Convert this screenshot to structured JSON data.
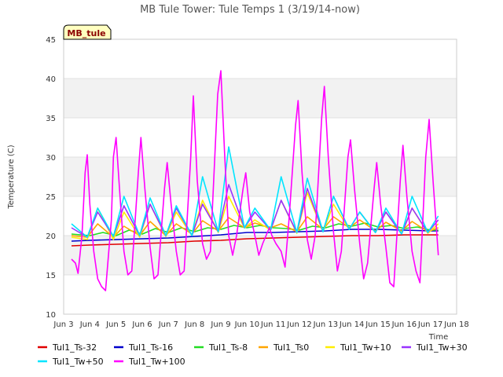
{
  "chart_data": {
    "type": "line",
    "title": "MB Tule Tower: Tule Temps 1 (3/19/14-now)",
    "xlabel": "Time",
    "ylabel": "Temperature (C)",
    "ylim": [
      10,
      45
    ],
    "xlim": [
      3,
      18
    ],
    "yticks": [
      10,
      15,
      20,
      25,
      30,
      35,
      40,
      45
    ],
    "xticks": [
      {
        "v": 3,
        "label": "Jun 3"
      },
      {
        "v": 4,
        "label": "Jun 4"
      },
      {
        "v": 5,
        "label": "Jun 5"
      },
      {
        "v": 6,
        "label": "Jun 6"
      },
      {
        "v": 7,
        "label": "Jun 7"
      },
      {
        "v": 8,
        "label": "Jun 8"
      },
      {
        "v": 9,
        "label": "Jun 9"
      },
      {
        "v": 10,
        "label": "Jun 10"
      },
      {
        "v": 11,
        "label": "Jun 11"
      },
      {
        "v": 12,
        "label": "Jun 12"
      },
      {
        "v": 13,
        "label": "Jun 13"
      },
      {
        "v": 14,
        "label": "Jun 14"
      },
      {
        "v": 15,
        "label": "Jun 15"
      },
      {
        "v": 16,
        "label": "Jun 16"
      },
      {
        "v": 17,
        "label": "Jun 17"
      },
      {
        "v": 18,
        "label": "Jun 18"
      }
    ],
    "badge": "MB_tule",
    "bands": true,
    "series": [
      {
        "name": "Tul1_Ts-32",
        "color": "#e00000",
        "x": [
          3.3,
          4,
          5,
          6,
          7,
          8,
          9,
          10,
          11,
          12,
          13,
          14,
          15,
          16,
          17,
          17.3
        ],
        "y": [
          18.7,
          18.8,
          18.9,
          19.0,
          19.1,
          19.3,
          19.4,
          19.6,
          19.7,
          19.8,
          19.9,
          20.0,
          20.0,
          20.1,
          20.1,
          20.1
        ]
      },
      {
        "name": "Tul1_Ts-16",
        "color": "#0000cc",
        "x": [
          3.3,
          4,
          5,
          6,
          7,
          8,
          9,
          10,
          11,
          12,
          13,
          14,
          15,
          16,
          17,
          17.3
        ],
        "y": [
          19.3,
          19.4,
          19.5,
          19.6,
          19.7,
          19.9,
          20.1,
          20.4,
          20.4,
          20.5,
          20.6,
          20.8,
          20.8,
          20.7,
          20.6,
          20.6
        ]
      },
      {
        "name": "Tul1_Ts-8",
        "color": "#22dd22",
        "x": [
          3.3,
          4,
          4.5,
          5,
          5.5,
          6,
          6.5,
          7,
          7.5,
          8,
          8.5,
          9,
          9.5,
          10,
          10.5,
          11,
          11.5,
          12,
          12.5,
          13,
          13.5,
          14,
          14.5,
          15,
          15.5,
          16,
          16.5,
          17,
          17.3
        ],
        "y": [
          20.2,
          20.0,
          20.4,
          20.0,
          20.7,
          20.2,
          20.9,
          20.4,
          21.0,
          20.5,
          21.0,
          20.8,
          21.3,
          21.0,
          21.3,
          21.0,
          20.9,
          20.7,
          21.2,
          21.0,
          21.5,
          21.2,
          21.6,
          21.1,
          21.3,
          20.9,
          21.1,
          20.7,
          20.7
        ]
      },
      {
        "name": "Tul1_Ts0",
        "color": "#ffa500",
        "x": [
          3.3,
          3.9,
          4.3,
          4.9,
          5.3,
          5.9,
          6.3,
          6.9,
          7.3,
          7.9,
          8.3,
          8.9,
          9.3,
          9.9,
          10.3,
          10.9,
          11.3,
          11.9,
          12.3,
          12.9,
          13.3,
          13.9,
          14.3,
          14.9,
          15.3,
          15.9,
          16.3,
          16.9,
          17.3
        ],
        "y": [
          20.0,
          19.8,
          21.5,
          19.8,
          21.2,
          20.0,
          21.8,
          20.0,
          21.5,
          20.2,
          21.9,
          20.6,
          22.3,
          21.0,
          21.6,
          21.0,
          21.5,
          20.5,
          22.4,
          20.8,
          22.4,
          21.0,
          22.0,
          20.6,
          21.7,
          20.6,
          21.8,
          20.5,
          21.0
        ]
      },
      {
        "name": "Tul1_Tw+10",
        "color": "#ffee00",
        "x": [
          3.3,
          3.9,
          4.3,
          4.9,
          5.3,
          5.9,
          6.3,
          6.9,
          7.3,
          7.9,
          8.3,
          8.9,
          9.3,
          9.9,
          10.3,
          10.9,
          11.3,
          11.9,
          12.3,
          12.9,
          13.3,
          13.9,
          14.3,
          14.9,
          15.3,
          15.9,
          16.3,
          16.9,
          17.3
        ],
        "y": [
          19.8,
          19.5,
          23.5,
          19.5,
          23.0,
          19.8,
          24.0,
          19.9,
          23.0,
          20.0,
          24.5,
          20.4,
          25.0,
          21.0,
          22.0,
          20.7,
          24.5,
          20.3,
          25.5,
          20.5,
          24.0,
          20.8,
          23.0,
          20.4,
          23.0,
          20.3,
          23.5,
          20.3,
          21.5
        ]
      },
      {
        "name": "Tul1_Tw+30",
        "color": "#9933ff",
        "x": [
          3.3,
          3.9,
          4.3,
          4.9,
          5.3,
          5.9,
          6.3,
          6.9,
          7.3,
          7.9,
          8.3,
          8.9,
          9.3,
          9.9,
          10.3,
          10.9,
          11.3,
          11.9,
          12.3,
          12.9,
          13.3,
          13.9,
          14.3,
          14.9,
          15.3,
          15.9,
          16.3,
          16.9,
          17.3
        ],
        "y": [
          21.0,
          19.8,
          23.0,
          19.9,
          23.8,
          20.0,
          24.0,
          20.0,
          23.5,
          20.0,
          24.0,
          20.5,
          26.5,
          21.0,
          23.0,
          20.7,
          24.5,
          20.4,
          26.0,
          20.5,
          25.0,
          20.8,
          23.0,
          20.4,
          23.0,
          20.2,
          23.5,
          20.4,
          22.0
        ]
      },
      {
        "name": "Tul1_Tw+50",
        "color": "#00e5ff",
        "x": [
          3.3,
          3.9,
          4.3,
          4.9,
          5.3,
          5.9,
          6.3,
          6.9,
          7.3,
          7.9,
          8.3,
          8.9,
          9.3,
          9.9,
          10.3,
          10.9,
          11.3,
          11.9,
          12.3,
          12.9,
          13.3,
          13.9,
          14.3,
          14.9,
          15.3,
          15.9,
          16.3,
          16.9,
          17.3
        ],
        "y": [
          21.5,
          19.8,
          23.5,
          19.9,
          25.0,
          20.0,
          24.8,
          20.0,
          23.8,
          20.0,
          27.5,
          20.5,
          31.3,
          21.0,
          23.5,
          20.7,
          27.5,
          20.4,
          27.3,
          20.5,
          25.0,
          20.8,
          23.0,
          20.4,
          23.5,
          20.2,
          25.0,
          20.4,
          22.5
        ]
      },
      {
        "name": "Tul1_Tw+100",
        "color": "#ff00ff",
        "x": [
          3.3,
          3.45,
          3.55,
          3.7,
          3.82,
          3.9,
          4.0,
          4.15,
          4.3,
          4.45,
          4.6,
          4.82,
          4.9,
          5.0,
          5.15,
          5.3,
          5.45,
          5.6,
          5.85,
          5.95,
          6.1,
          6.3,
          6.45,
          6.6,
          6.85,
          6.95,
          7.1,
          7.3,
          7.45,
          7.6,
          7.85,
          7.95,
          8.1,
          8.3,
          8.45,
          8.6,
          8.88,
          9.0,
          9.15,
          9.3,
          9.45,
          9.6,
          9.85,
          9.95,
          10.1,
          10.3,
          10.45,
          10.6,
          10.85,
          10.95,
          11.1,
          11.3,
          11.45,
          11.6,
          11.85,
          11.95,
          12.1,
          12.3,
          12.45,
          12.6,
          12.85,
          12.95,
          13.1,
          13.3,
          13.45,
          13.6,
          13.85,
          13.95,
          14.1,
          14.3,
          14.45,
          14.6,
          14.85,
          14.95,
          15.1,
          15.3,
          15.45,
          15.6,
          15.85,
          15.95,
          16.1,
          16.3,
          16.45,
          16.6,
          16.82,
          16.95,
          17.1,
          17.3
        ],
        "y": [
          17.0,
          16.5,
          15.2,
          20.0,
          28.0,
          30.3,
          24.0,
          18.0,
          14.5,
          13.5,
          13.0,
          22.0,
          30.0,
          32.5,
          25.0,
          18.0,
          15.0,
          15.5,
          28.0,
          32.5,
          26.0,
          18.5,
          14.5,
          15.0,
          26.0,
          29.3,
          24.0,
          18.0,
          15.0,
          15.5,
          30.0,
          37.8,
          27.0,
          19.0,
          17.0,
          18.0,
          38.0,
          41.0,
          30.0,
          20.0,
          17.5,
          20.0,
          26.0,
          28.0,
          23.0,
          20.0,
          17.5,
          19.0,
          21.0,
          20.0,
          19.0,
          18.0,
          16.0,
          22.0,
          34.0,
          37.2,
          28.0,
          19.5,
          17.0,
          20.0,
          35.0,
          39.0,
          30.0,
          20.5,
          15.5,
          18.0,
          30.0,
          32.2,
          26.0,
          19.0,
          14.5,
          16.5,
          26.0,
          29.3,
          24.0,
          18.5,
          14.0,
          13.5,
          27.0,
          31.5,
          25.0,
          18.0,
          15.5,
          14.0,
          30.0,
          34.8,
          27.0,
          17.5
        ]
      }
    ]
  }
}
